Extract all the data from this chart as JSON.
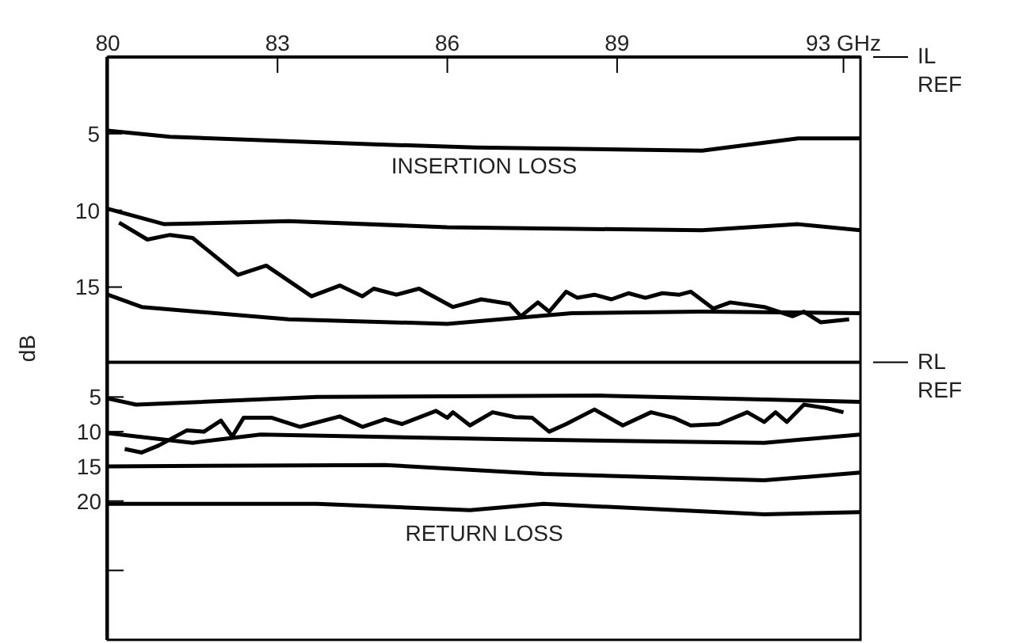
{
  "chart_data": {
    "type": "line",
    "ylabel": "dB",
    "annotations": [
      "INSERTION LOSS",
      "RETURN LOSS"
    ],
    "xlim": [
      80,
      93.3
    ],
    "xticks": [
      80,
      83,
      86,
      89,
      {
        "value": 93,
        "label": "93 GHz"
      }
    ],
    "ylim": [
      38,
      0
    ],
    "yticks": [
      5,
      10,
      {
        "value": 15,
        "label": "15"
      }
    ],
    "y2lim": [
      40,
      -44
    ],
    "y2ticks": [
      5,
      10,
      15,
      20,
      {
        "value": 30,
        "label": null
      }
    ],
    "ref_lines": [
      {
        "axis": "y",
        "value": 0,
        "label": "IL REF",
        "color": "#000000"
      },
      {
        "axis": "y2",
        "value": 0,
        "label": "RL REF",
        "color": "#000000"
      }
    ],
    "series": [
      {
        "color": "#000000",
        "x": [
          80,
          81.1,
          84.8,
          86.5,
          90.5,
          92.2,
          93.3
        ],
        "values": [
          4.8,
          5.2,
          5.7,
          5.9,
          6.1,
          5.3,
          5.3
        ]
      },
      {
        "color": "#000000",
        "x": [
          80,
          81,
          83.2,
          86,
          90.5,
          92.2,
          93.3
        ],
        "values": [
          9.9,
          10.9,
          10.7,
          11.1,
          11.3,
          10.9,
          11.3
        ]
      },
      {
        "color": "#000000",
        "x": [
          80,
          80.6,
          83.2,
          86,
          88.2,
          90.5,
          93.3
        ],
        "values": [
          15.5,
          16.3,
          17.1,
          17.4,
          16.7,
          16.6,
          16.7
        ]
      },
      {
        "color": "#000000",
        "x": [
          80.2,
          80.7,
          81.1,
          81.5,
          82.3,
          82.8,
          83.6,
          84.1,
          84.5,
          84.7,
          85.1,
          85.5,
          86.1,
          86.6,
          87.1,
          87.3,
          87.6,
          87.8,
          88.1,
          88.3,
          88.6,
          88.9,
          89.2,
          89.5,
          89.8,
          90.1,
          90.3,
          90.7,
          91,
          91.6,
          92.1,
          92.3,
          92.6,
          93.1
        ],
        "values": [
          10.8,
          11.9,
          11.6,
          11.8,
          14.2,
          13.6,
          15.6,
          14.9,
          15.6,
          15.1,
          15.5,
          15.1,
          16.3,
          15.8,
          16.1,
          16.9,
          16.0,
          16.6,
          15.3,
          15.7,
          15.5,
          15.8,
          15.4,
          15.7,
          15.4,
          15.5,
          15.3,
          16.4,
          16.0,
          16.3,
          16.9,
          16.6,
          17.3,
          17.1
        ]
      },
      {
        "color": "#000000",
        "axis": "y2",
        "x": [
          80,
          80.5,
          83.7,
          88.7,
          93.3
        ],
        "values": [
          5.2,
          6.1,
          5.0,
          4.8,
          5.7
        ]
      },
      {
        "color": "#000000",
        "axis": "y2",
        "x": [
          80.3,
          80.6,
          80.9,
          81.4,
          81.7,
          82,
          82.2,
          82.4,
          82.9,
          83.4,
          84.1,
          84.5,
          84.9,
          85.2,
          85.8,
          86,
          86.1,
          86.4,
          86.8,
          87.2,
          87.5,
          87.8,
          88.1,
          88.6,
          89.1,
          89.6,
          90,
          90.3,
          90.8,
          91.3,
          91.6,
          91.8,
          92,
          92.3,
          92.7,
          93
        ],
        "values": [
          12.5,
          13.0,
          12.0,
          9.8,
          10.0,
          8.4,
          10.7,
          8.0,
          8.0,
          9.3,
          7.8,
          9.3,
          8.2,
          8.9,
          7.0,
          8.0,
          7.2,
          9.1,
          7.2,
          7.9,
          8.0,
          10.0,
          8.9,
          6.8,
          9.1,
          7.2,
          8.0,
          9.1,
          8.9,
          7.2,
          8.6,
          7.2,
          8.6,
          6.1,
          6.6,
          7.2
        ]
      },
      {
        "color": "#000000",
        "axis": "y2",
        "x": [
          80,
          81.5,
          82.7,
          87.1,
          91.6,
          93.3
        ],
        "values": [
          10.2,
          11.6,
          10.4,
          11.1,
          11.6,
          10.4
        ]
      },
      {
        "color": "#000000",
        "axis": "y2",
        "x": [
          80,
          84.9,
          87.7,
          91.6,
          93.3
        ],
        "values": [
          15.0,
          14.8,
          16.1,
          17.0,
          15.9
        ]
      },
      {
        "color": "#000000",
        "axis": "y2",
        "x": [
          80,
          83.7,
          86.4,
          87.7,
          91.6,
          93.3
        ],
        "values": [
          20.4,
          20.4,
          21.3,
          20.4,
          21.9,
          21.6
        ]
      }
    ]
  }
}
